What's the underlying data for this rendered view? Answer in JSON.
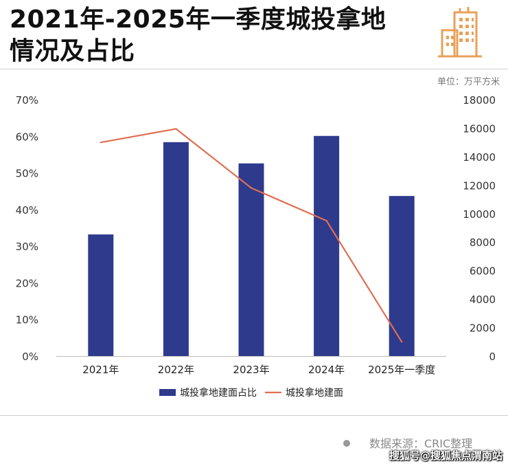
{
  "title_lines": [
    "2021年-2025年一季度城投拿地",
    "情况及占比"
  ],
  "unit_label": "单位：万平方米",
  "source_text": "数据来源：CRIC整理",
  "watermark_text": "搜狐号@搜狐焦点渭南站",
  "colors": {
    "bar": "#2e3a8c",
    "line": "#e06e52",
    "icon": "#e8a15a"
  },
  "chart_data": {
    "type": "bar+line",
    "categories": [
      "2021年",
      "2022年",
      "2023年",
      "2024年",
      "2025年一季度"
    ],
    "series": [
      {
        "name": "城投拿地建面占比",
        "type": "bar",
        "axis": "left",
        "unit": "%",
        "values": [
          33.2,
          58.4,
          52.6,
          60.1,
          43.7
        ]
      },
      {
        "name": "城投拿地建面",
        "type": "line",
        "axis": "right",
        "unit": "万平方米",
        "values": [
          15000,
          15950,
          11800,
          9500,
          1000
        ]
      }
    ],
    "left_axis": {
      "ylim": [
        0,
        70
      ],
      "ticks": [
        "0%",
        "10%",
        "20%",
        "30%",
        "40%",
        "50%",
        "60%",
        "70%"
      ],
      "tick_values": [
        0,
        10,
        20,
        30,
        40,
        50,
        60,
        70
      ]
    },
    "right_axis": {
      "ylim": [
        0,
        18000
      ],
      "ticks": [
        "0",
        "2000",
        "4000",
        "6000",
        "8000",
        "10000",
        "12000",
        "14000",
        "16000",
        "18000"
      ],
      "tick_values": [
        0,
        2000,
        4000,
        6000,
        8000,
        10000,
        12000,
        14000,
        16000,
        18000
      ]
    },
    "legend_position": "bottom"
  }
}
